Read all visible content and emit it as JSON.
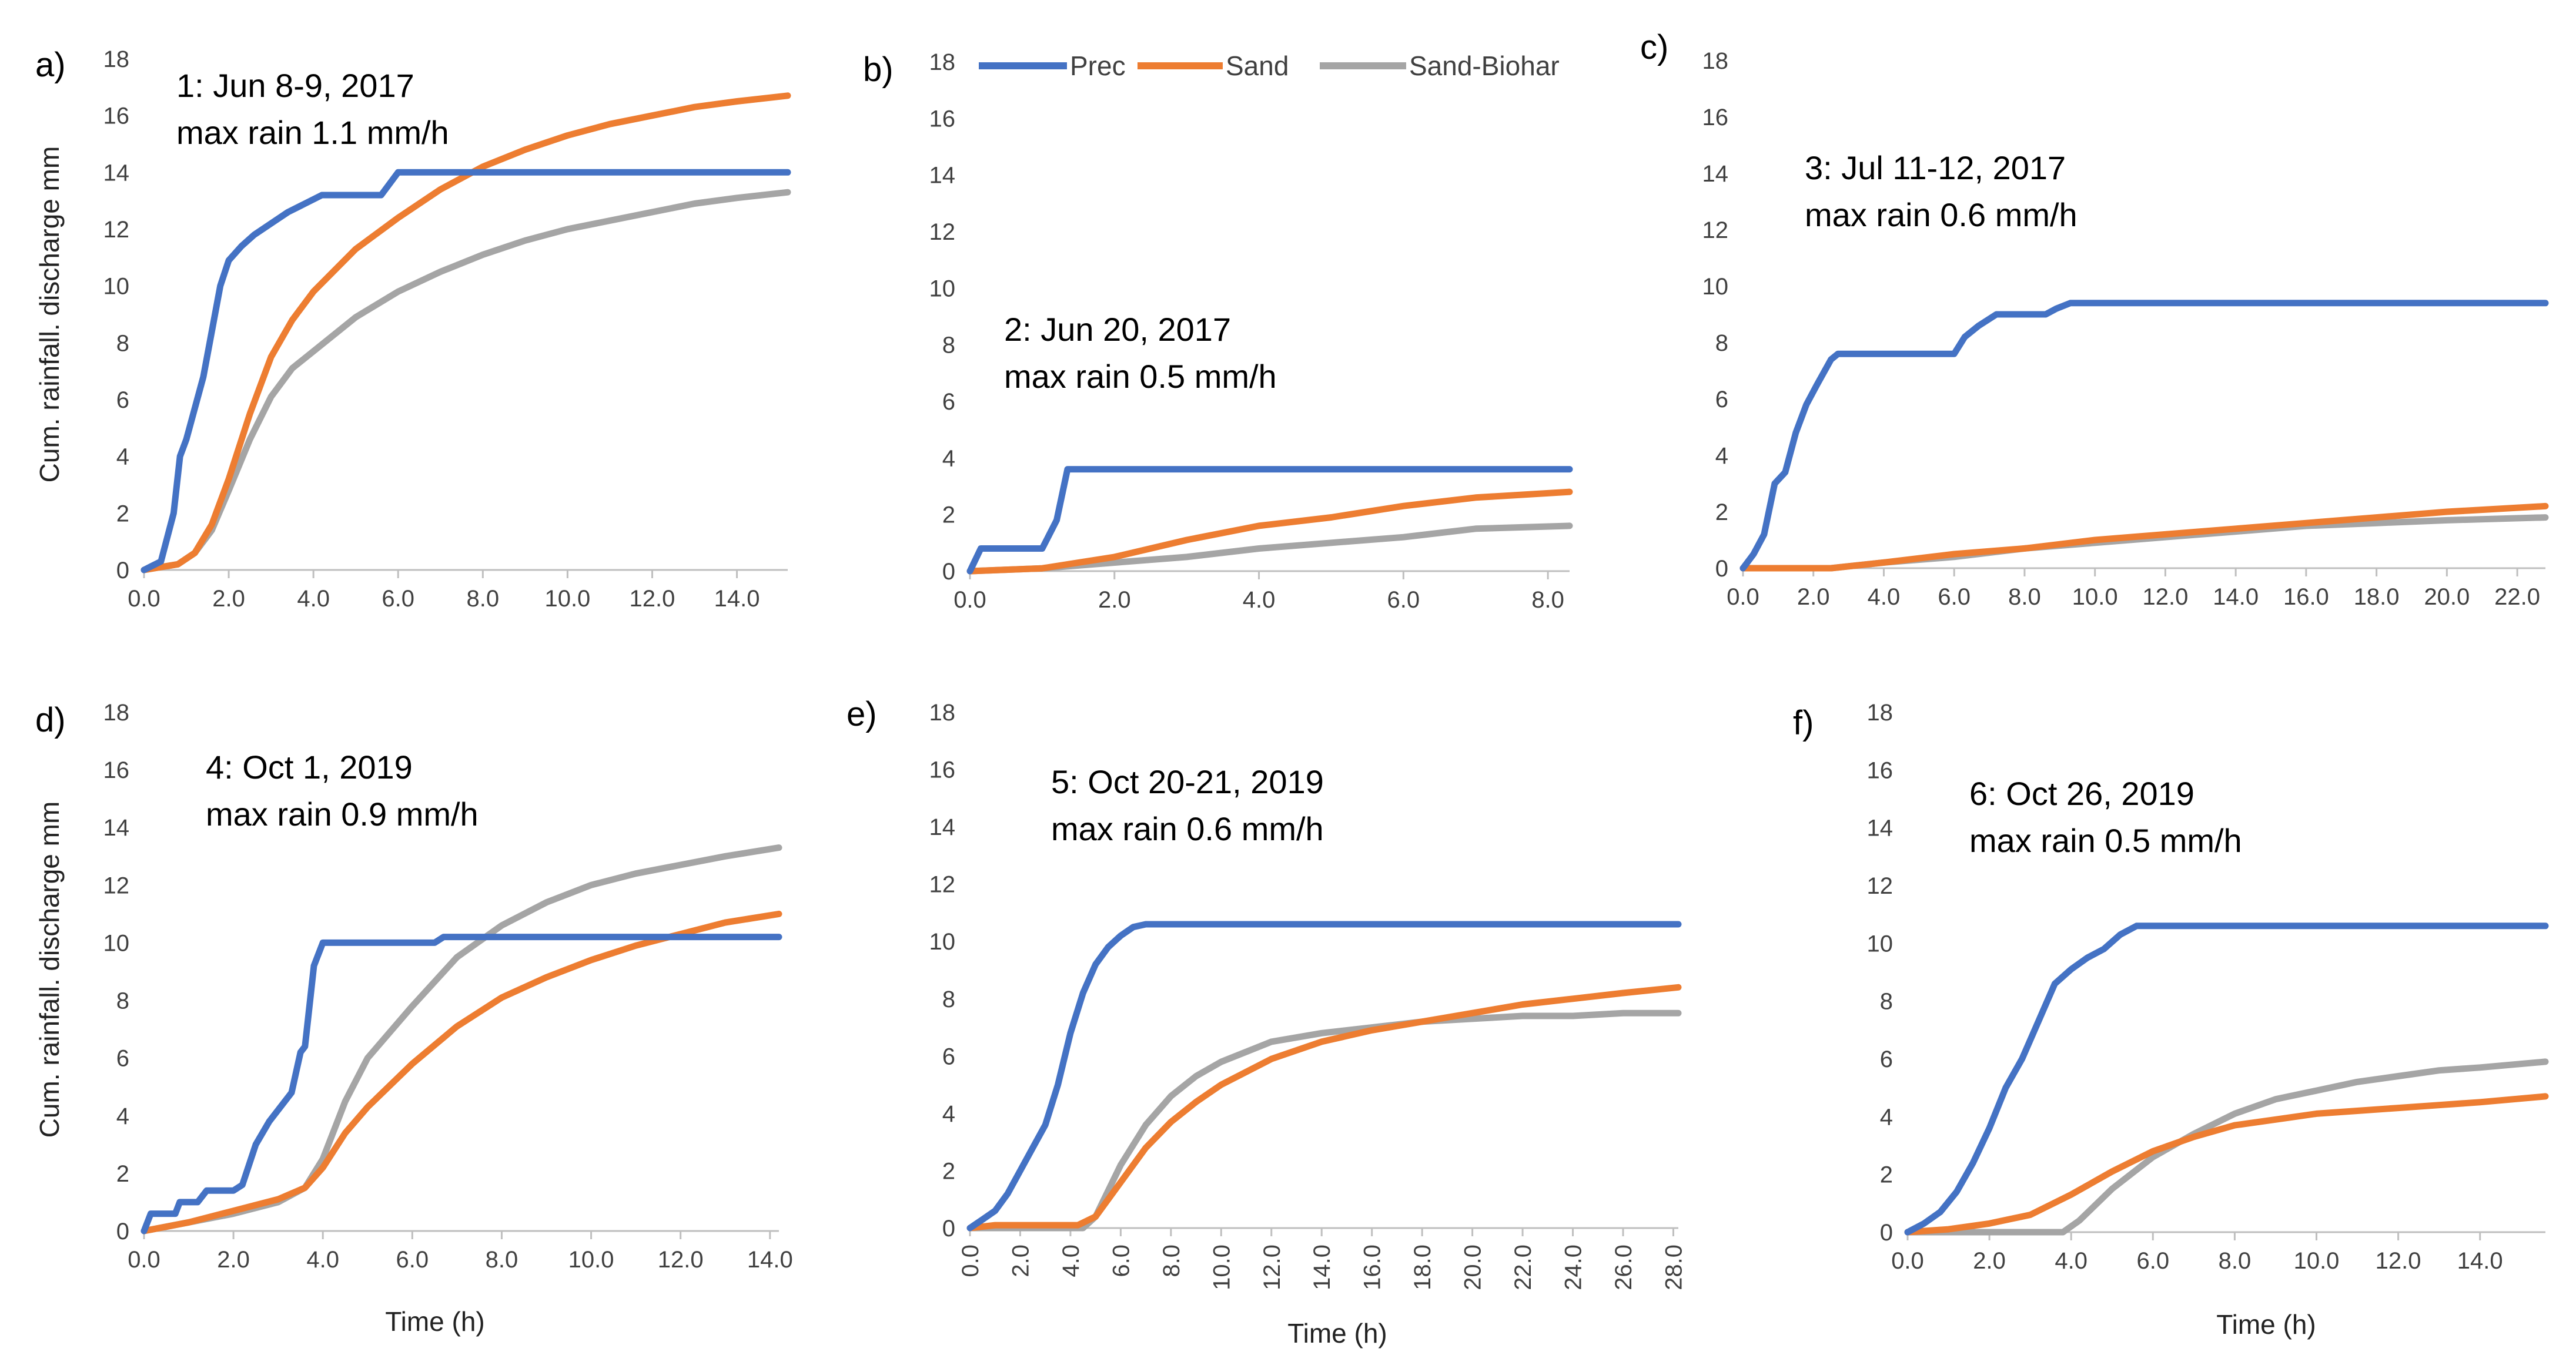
{
  "figure": {
    "series_names": [
      "Prec",
      "Sand",
      "Sand-Biohar"
    ],
    "colors": {
      "Prec": "#4472C4",
      "Sand": "#ED7D31",
      "Sand-Biohar": "#A5A5A5"
    },
    "legend": {
      "placement": "top of panel b",
      "labels": [
        "Prec",
        "Sand",
        "Sand-Biohar"
      ]
    }
  },
  "chart_data": [
    {
      "type": "line",
      "panel_label": "a)",
      "title": "1: Jun 8-9, 2017",
      "subtitle": "max rain 1.1 mm/h",
      "xlabel": "",
      "ylabel": "Cum. rainfall. discharge mm",
      "xlim": [
        0,
        15.2
      ],
      "ylim": [
        0,
        18
      ],
      "xticks": [
        "0.0",
        "2.0",
        "4.0",
        "6.0",
        "8.0",
        "10.0",
        "12.0",
        "14.0"
      ],
      "yticks": [
        "0",
        "2",
        "4",
        "6",
        "8",
        "10",
        "12",
        "14",
        "16",
        "18"
      ],
      "series": [
        {
          "name": "Prec",
          "x": [
            0,
            0.4,
            0.7,
            0.85,
            1.0,
            1.4,
            1.8,
            2.0,
            2.3,
            2.6,
            3.0,
            3.4,
            3.8,
            4.2,
            4.8,
            5.6,
            6.0,
            15.2
          ],
          "y": [
            0,
            0.3,
            2.0,
            4.0,
            4.6,
            6.8,
            10.0,
            10.9,
            11.4,
            11.8,
            12.2,
            12.6,
            12.9,
            13.2,
            13.2,
            13.2,
            14.0,
            14.0
          ]
        },
        {
          "name": "Sand",
          "x": [
            0,
            0.8,
            1.2,
            1.6,
            2.0,
            2.5,
            3.0,
            3.5,
            4.0,
            5.0,
            6.0,
            7.0,
            8.0,
            9.0,
            10.0,
            11.0,
            12.0,
            13.0,
            14.0,
            15.2
          ],
          "y": [
            0,
            0.2,
            0.6,
            1.6,
            3.2,
            5.5,
            7.5,
            8.8,
            9.8,
            11.3,
            12.4,
            13.4,
            14.2,
            14.8,
            15.3,
            15.7,
            16.0,
            16.3,
            16.5,
            16.7
          ]
        },
        {
          "name": "Sand-Biohar",
          "x": [
            0,
            0.8,
            1.2,
            1.6,
            2.0,
            2.5,
            3.0,
            3.5,
            4.0,
            5.0,
            6.0,
            7.0,
            8.0,
            9.0,
            10.0,
            11.0,
            12.0,
            13.0,
            14.0,
            15.2
          ],
          "y": [
            0,
            0.2,
            0.6,
            1.4,
            2.8,
            4.6,
            6.1,
            7.1,
            7.7,
            8.9,
            9.8,
            10.5,
            11.1,
            11.6,
            12.0,
            12.3,
            12.6,
            12.9,
            13.1,
            13.3
          ]
        }
      ]
    },
    {
      "type": "line",
      "panel_label": "b)",
      "title": "2: Jun 20, 2017",
      "subtitle": "max rain 0.5 mm/h",
      "xlabel": "",
      "ylabel": "",
      "xlim": [
        0,
        8.3
      ],
      "ylim": [
        0,
        18
      ],
      "xticks": [
        "0.0",
        "2.0",
        "4.0",
        "6.0",
        "8.0"
      ],
      "yticks": [
        "0",
        "2",
        "4",
        "6",
        "8",
        "10",
        "12",
        "14",
        "16",
        "18"
      ],
      "series": [
        {
          "name": "Prec",
          "x": [
            0,
            0.15,
            0.2,
            1.0,
            1.2,
            1.35,
            8.3
          ],
          "y": [
            0,
            0.8,
            0.8,
            0.8,
            1.8,
            3.6,
            3.6
          ]
        },
        {
          "name": "Sand",
          "x": [
            0,
            1.0,
            1.5,
            2.0,
            3.0,
            4.0,
            5.0,
            6.0,
            7.0,
            8.3
          ],
          "y": [
            0,
            0.1,
            0.3,
            0.5,
            1.1,
            1.6,
            1.9,
            2.3,
            2.6,
            2.8
          ]
        },
        {
          "name": "Sand-Biohar",
          "x": [
            0,
            1.0,
            2.0,
            3.0,
            4.0,
            5.0,
            6.0,
            7.0,
            8.3
          ],
          "y": [
            0,
            0.1,
            0.3,
            0.5,
            0.8,
            1.0,
            1.2,
            1.5,
            1.6
          ]
        }
      ]
    },
    {
      "type": "line",
      "panel_label": "c)",
      "title": "3: Jul 11-12, 2017",
      "subtitle": "max rain 0.6 mm/h",
      "xlabel": "",
      "ylabel": "",
      "xlim": [
        0,
        22.8
      ],
      "ylim": [
        0,
        18
      ],
      "xticks": [
        "0.0",
        "2.0",
        "4.0",
        "6.0",
        "8.0",
        "10.0",
        "12.0",
        "14.0",
        "16.0",
        "18.0",
        "20.0",
        "22.0"
      ],
      "yticks": [
        "0",
        "2",
        "4",
        "6",
        "8",
        "10",
        "12",
        "14",
        "16",
        "18"
      ],
      "series": [
        {
          "name": "Prec",
          "x": [
            0,
            0.3,
            0.6,
            0.9,
            1.2,
            1.5,
            1.8,
            2.1,
            2.5,
            2.7,
            6.0,
            6.3,
            6.7,
            7.2,
            8.6,
            8.9,
            9.3,
            22.8
          ],
          "y": [
            0,
            0.5,
            1.2,
            3.0,
            3.4,
            4.8,
            5.8,
            6.5,
            7.4,
            7.6,
            7.6,
            8.2,
            8.6,
            9.0,
            9.0,
            9.2,
            9.4,
            9.4
          ]
        },
        {
          "name": "Sand",
          "x": [
            0,
            2.5,
            4.0,
            6.0,
            8.0,
            10.0,
            12.0,
            14.0,
            16.0,
            18.0,
            20.0,
            22.8
          ],
          "y": [
            0,
            0,
            0.2,
            0.5,
            0.7,
            1.0,
            1.2,
            1.4,
            1.6,
            1.8,
            2.0,
            2.2
          ]
        },
        {
          "name": "Sand-Biohar",
          "x": [
            0,
            2.5,
            4.0,
            6.0,
            8.0,
            10.0,
            12.0,
            14.0,
            16.0,
            18.0,
            20.0,
            22.8
          ],
          "y": [
            0,
            0,
            0.2,
            0.4,
            0.7,
            0.9,
            1.1,
            1.3,
            1.5,
            1.6,
            1.7,
            1.8
          ]
        }
      ]
    },
    {
      "type": "line",
      "panel_label": "d)",
      "title": "4: Oct 1, 2019",
      "subtitle": "max rain 0.9 mm/h",
      "xlabel": "Time  (h)",
      "ylabel": "Cum. rainfall. discharge mm",
      "xlim": [
        0,
        14.2
      ],
      "ylim": [
        0,
        18
      ],
      "xticks": [
        "0.0",
        "2.0",
        "4.0",
        "6.0",
        "8.0",
        "10.0",
        "12.0",
        "14.0"
      ],
      "yticks": [
        "0",
        "2",
        "4",
        "6",
        "8",
        "10",
        "12",
        "14",
        "16",
        "18"
      ],
      "series": [
        {
          "name": "Prec",
          "x": [
            0,
            0.15,
            0.2,
            0.7,
            0.8,
            1.2,
            1.4,
            2.0,
            2.2,
            2.5,
            2.8,
            3.0,
            3.3,
            3.5,
            3.6,
            3.8,
            4.0,
            6.5,
            6.7,
            14.2
          ],
          "y": [
            0,
            0.6,
            0.6,
            0.6,
            1.0,
            1.0,
            1.4,
            1.4,
            1.6,
            3.0,
            3.8,
            4.2,
            4.8,
            6.2,
            6.4,
            9.2,
            10.0,
            10.0,
            10.2,
            10.2
          ]
        },
        {
          "name": "Sand",
          "x": [
            0,
            1.0,
            2.0,
            3.0,
            3.6,
            4.0,
            4.5,
            5.0,
            6.0,
            7.0,
            8.0,
            9.0,
            10.0,
            11.0,
            12.0,
            13.0,
            14.2
          ],
          "y": [
            0,
            0.3,
            0.7,
            1.1,
            1.5,
            2.2,
            3.4,
            4.3,
            5.8,
            7.1,
            8.1,
            8.8,
            9.4,
            9.9,
            10.3,
            10.7,
            11.0
          ]
        },
        {
          "name": "Sand-Biohar",
          "x": [
            0,
            1.0,
            2.0,
            3.0,
            3.6,
            4.0,
            4.5,
            5.0,
            6.0,
            7.0,
            8.0,
            9.0,
            10.0,
            11.0,
            12.0,
            13.0,
            14.2
          ],
          "y": [
            0,
            0.3,
            0.6,
            1.0,
            1.5,
            2.5,
            4.5,
            6.0,
            7.8,
            9.5,
            10.6,
            11.4,
            12.0,
            12.4,
            12.7,
            13.0,
            13.3
          ]
        }
      ]
    },
    {
      "type": "line",
      "panel_label": "e)",
      "title": "5: Oct 20-21, 2019",
      "subtitle": "max rain 0.6 mm/h",
      "xlabel": "Time  (h)",
      "ylabel": "",
      "xlim": [
        0,
        28.2
      ],
      "ylim": [
        0,
        18
      ],
      "xticks": [
        "0.0",
        "2.0",
        "4.0",
        "6.0",
        "8.0",
        "10.0",
        "12.0",
        "14.0",
        "16.0",
        "18.0",
        "20.0",
        "22.0",
        "24.0",
        "26.0",
        "28.0"
      ],
      "yticks": [
        "0",
        "2",
        "4",
        "6",
        "8",
        "10",
        "12",
        "14",
        "16",
        "18"
      ],
      "series": [
        {
          "name": "Prec",
          "x": [
            0,
            0.5,
            1.0,
            1.5,
            2.0,
            2.5,
            3.0,
            3.5,
            4.0,
            4.5,
            5.0,
            5.5,
            6.0,
            6.5,
            7.0,
            28.2
          ],
          "y": [
            0,
            0.3,
            0.6,
            1.2,
            2.0,
            2.8,
            3.6,
            5.0,
            6.8,
            8.2,
            9.2,
            9.8,
            10.2,
            10.5,
            10.6,
            10.6
          ]
        },
        {
          "name": "Sand",
          "x": [
            0,
            1.0,
            4.3,
            5.0,
            6.0,
            7.0,
            8.0,
            9.0,
            10.0,
            12.0,
            14.0,
            16.0,
            18.0,
            20.0,
            22.0,
            24.0,
            26.0,
            28.2
          ],
          "y": [
            0,
            0.1,
            0.1,
            0.4,
            1.6,
            2.8,
            3.7,
            4.4,
            5.0,
            5.9,
            6.5,
            6.9,
            7.2,
            7.5,
            7.8,
            8.0,
            8.2,
            8.4
          ]
        },
        {
          "name": "Sand-Biohar",
          "x": [
            0,
            4.5,
            5.0,
            6.0,
            7.0,
            8.0,
            9.0,
            10.0,
            12.0,
            14.0,
            16.0,
            18.0,
            20.0,
            22.0,
            24.0,
            26.0,
            28.2
          ],
          "y": [
            0,
            0,
            0.4,
            2.2,
            3.6,
            4.6,
            5.3,
            5.8,
            6.5,
            6.8,
            7.0,
            7.2,
            7.3,
            7.4,
            7.4,
            7.5,
            7.5
          ]
        }
      ]
    },
    {
      "type": "line",
      "panel_label": "f)",
      "title": "6: Oct 26, 2019",
      "subtitle": "max rain 0.5 mm/h",
      "xlabel": "Time  (h)",
      "ylabel": "",
      "xlim": [
        0,
        15.6
      ],
      "ylim": [
        0,
        18
      ],
      "xticks": [
        "0.0",
        "2.0",
        "4.0",
        "6.0",
        "8.0",
        "10.0",
        "12.0",
        "14.0"
      ],
      "yticks": [
        "0",
        "2",
        "4",
        "6",
        "8",
        "10",
        "12",
        "14",
        "16",
        "18"
      ],
      "series": [
        {
          "name": "Prec",
          "x": [
            0,
            0.4,
            0.8,
            1.2,
            1.6,
            2.0,
            2.4,
            2.8,
            3.2,
            3.6,
            4.0,
            4.4,
            4.8,
            5.2,
            5.6,
            15.6
          ],
          "y": [
            0,
            0.3,
            0.7,
            1.4,
            2.4,
            3.6,
            5.0,
            6.0,
            7.3,
            8.6,
            9.1,
            9.5,
            9.8,
            10.3,
            10.6,
            10.6
          ]
        },
        {
          "name": "Sand",
          "x": [
            0,
            1.0,
            2.0,
            3.0,
            4.0,
            5.0,
            6.0,
            7.0,
            8.0,
            9.0,
            10.0,
            11.0,
            12.0,
            13.0,
            14.0,
            15.6
          ],
          "y": [
            0,
            0.1,
            0.3,
            0.6,
            1.3,
            2.1,
            2.8,
            3.3,
            3.7,
            3.9,
            4.1,
            4.2,
            4.3,
            4.4,
            4.5,
            4.7
          ]
        },
        {
          "name": "Sand-Biohar",
          "x": [
            0,
            3.8,
            4.2,
            5.0,
            6.0,
            7.0,
            8.0,
            9.0,
            10.0,
            11.0,
            12.0,
            13.0,
            14.0,
            15.6
          ],
          "y": [
            0,
            0,
            0.4,
            1.5,
            2.6,
            3.4,
            4.1,
            4.6,
            4.9,
            5.2,
            5.4,
            5.6,
            5.7,
            5.9
          ]
        }
      ]
    }
  ]
}
